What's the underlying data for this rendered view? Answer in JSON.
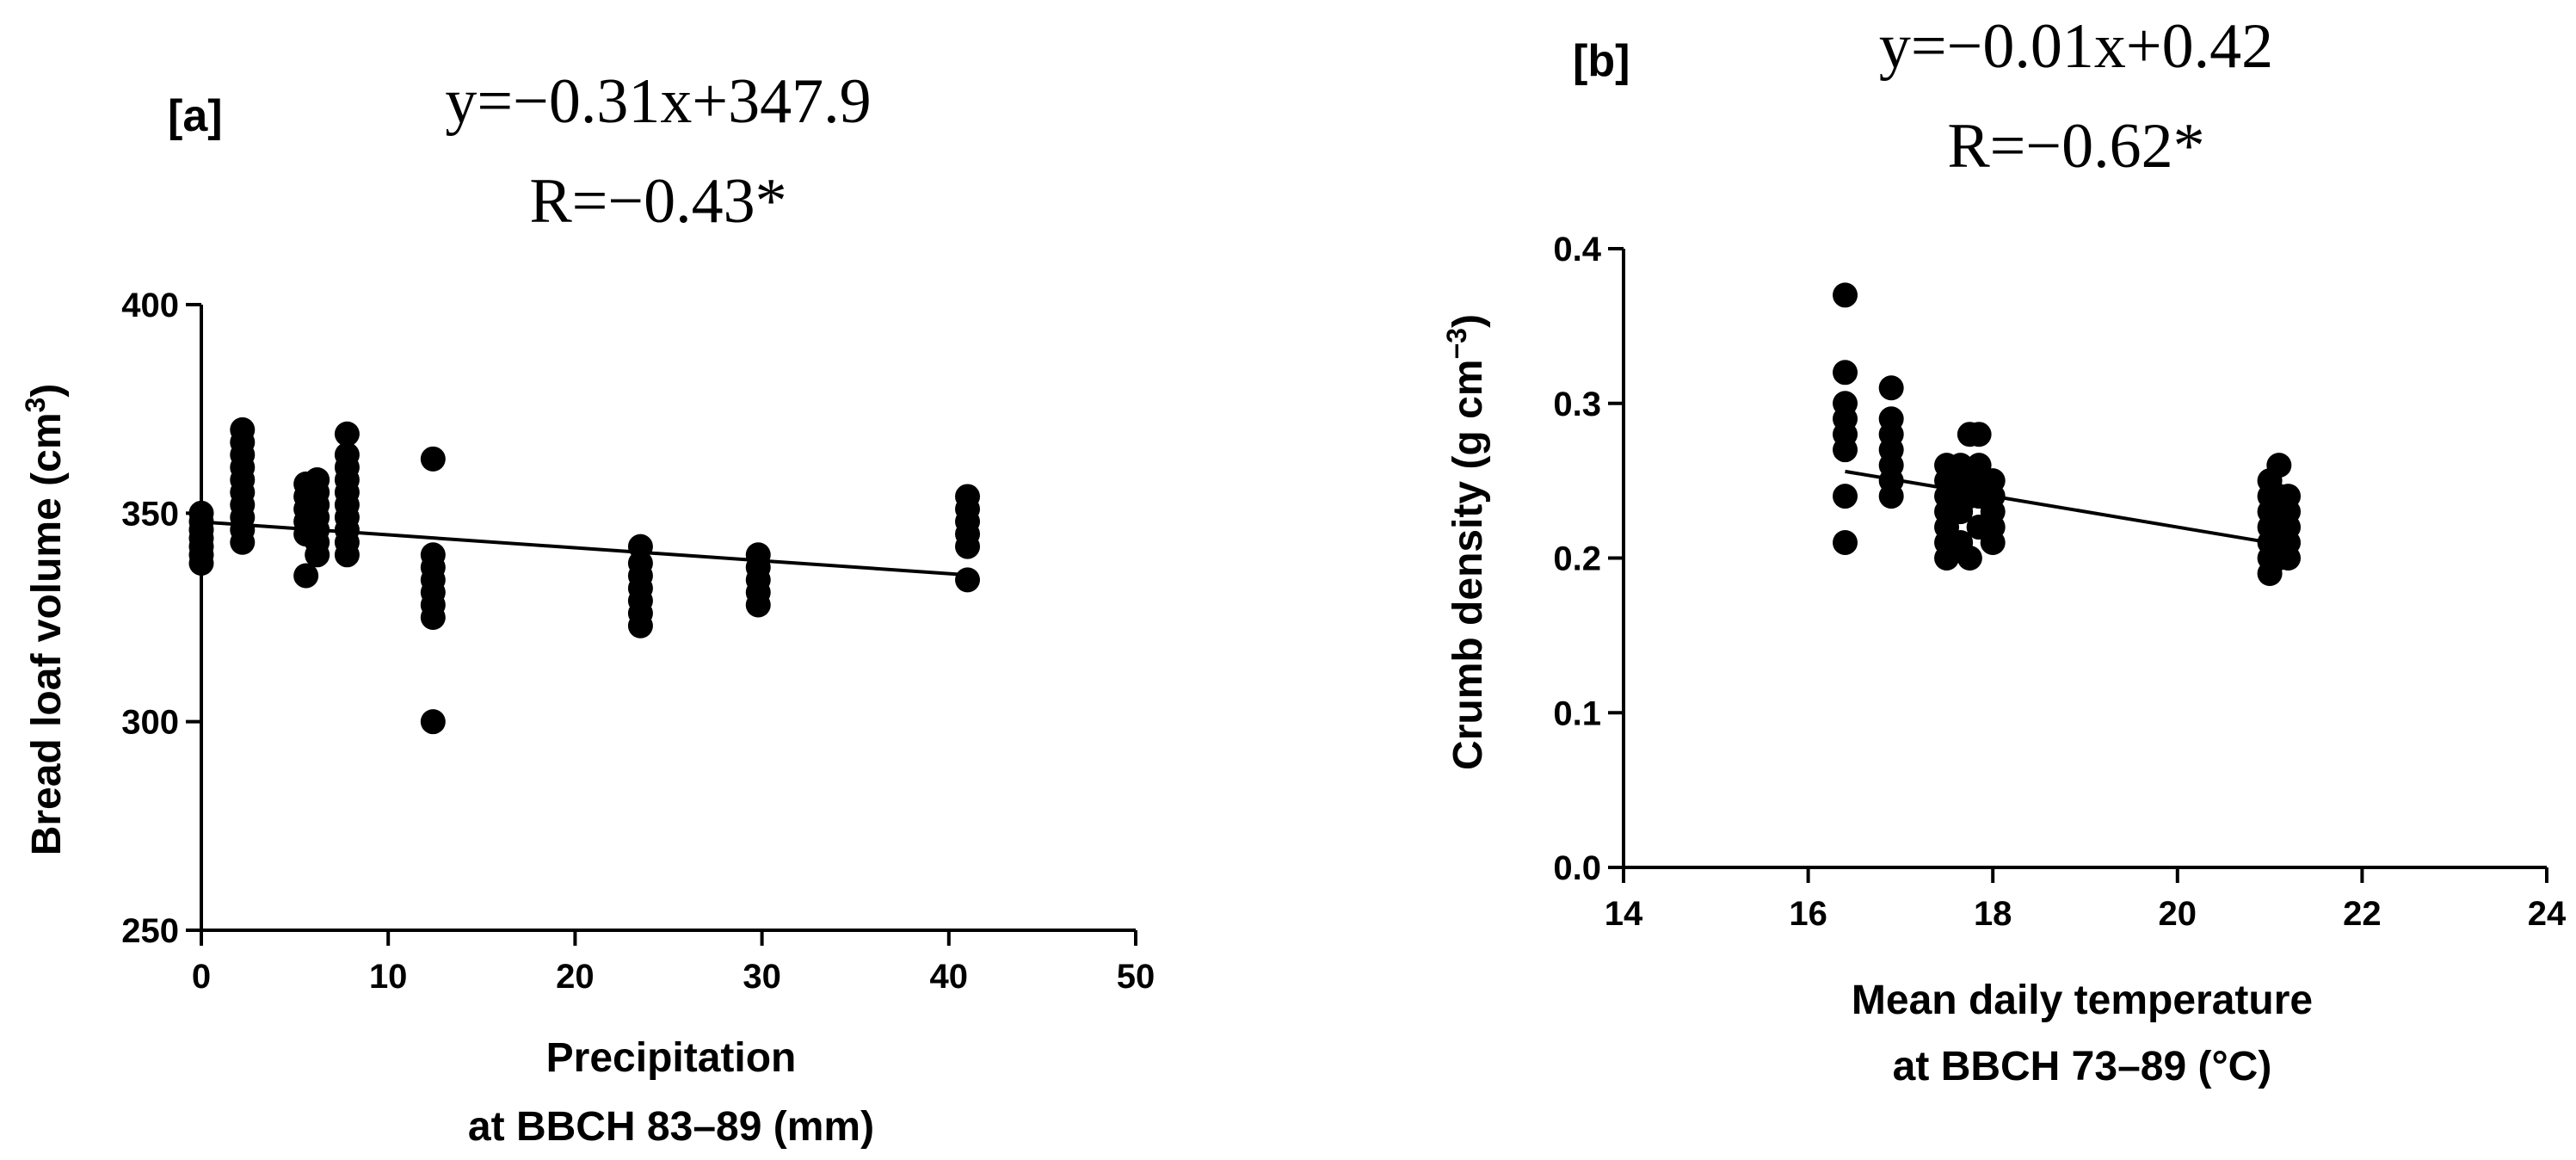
{
  "chart_data": [
    {
      "type": "scatter",
      "panel_label": "[a]",
      "equation": "y=−0.31x+347.9",
      "correlation": "R=−0.43*",
      "ylabel": "Bread loaf volume (cm",
      "ylabel_sup": "3",
      "ylabel_close": ")",
      "xlabel_line1": "Precipitation",
      "xlabel_line2": "at BBCH 83–89 (mm)",
      "xlim": [
        0,
        50
      ],
      "ylim": [
        250,
        400
      ],
      "xticks": [
        0,
        10,
        20,
        30,
        40,
        50
      ],
      "yticks": [
        250,
        300,
        350,
        400
      ],
      "fit": {
        "slope": -0.31,
        "intercept": 347.9,
        "x_range": [
          0,
          41
        ]
      },
      "points": [
        [
          0,
          338
        ],
        [
          0,
          340
        ],
        [
          0,
          342
        ],
        [
          0,
          344
        ],
        [
          0,
          346
        ],
        [
          0,
          348
        ],
        [
          0,
          350
        ],
        [
          2.2,
          343
        ],
        [
          2.2,
          346
        ],
        [
          2.2,
          349
        ],
        [
          2.2,
          352
        ],
        [
          2.2,
          355
        ],
        [
          2.2,
          358
        ],
        [
          2.2,
          361
        ],
        [
          2.2,
          364
        ],
        [
          2.2,
          367
        ],
        [
          2.2,
          370
        ],
        [
          5.6,
          335
        ],
        [
          5.6,
          345
        ],
        [
          5.6,
          348
        ],
        [
          5.6,
          351
        ],
        [
          5.6,
          354
        ],
        [
          5.6,
          357
        ],
        [
          6.2,
          340
        ],
        [
          6.2,
          343
        ],
        [
          6.2,
          346
        ],
        [
          6.2,
          349
        ],
        [
          6.2,
          352
        ],
        [
          6.2,
          355
        ],
        [
          6.2,
          358
        ],
        [
          7.8,
          340
        ],
        [
          7.8,
          343
        ],
        [
          7.8,
          346
        ],
        [
          7.8,
          349
        ],
        [
          7.8,
          352
        ],
        [
          7.8,
          355
        ],
        [
          7.8,
          358
        ],
        [
          7.8,
          361
        ],
        [
          7.8,
          364
        ],
        [
          7.8,
          369
        ],
        [
          12.4,
          300
        ],
        [
          12.4,
          325
        ],
        [
          12.4,
          328
        ],
        [
          12.4,
          331
        ],
        [
          12.4,
          334
        ],
        [
          12.4,
          337
        ],
        [
          12.4,
          340
        ],
        [
          12.4,
          363
        ],
        [
          23.5,
          323
        ],
        [
          23.5,
          326
        ],
        [
          23.5,
          329
        ],
        [
          23.5,
          332
        ],
        [
          23.5,
          335
        ],
        [
          23.5,
          338
        ],
        [
          23.5,
          342
        ],
        [
          29.8,
          328
        ],
        [
          29.8,
          331
        ],
        [
          29.8,
          334
        ],
        [
          29.8,
          337
        ],
        [
          29.8,
          340
        ],
        [
          41,
          334
        ],
        [
          41,
          342
        ],
        [
          41,
          345
        ],
        [
          41,
          348
        ],
        [
          41,
          351
        ],
        [
          41,
          354
        ]
      ]
    },
    {
      "type": "scatter",
      "panel_label": "[b]",
      "equation": "y=−0.01x+0.42",
      "correlation": "R=−0.62*",
      "ylabel": "Crumb density (g cm",
      "ylabel_sup": "−3",
      "ylabel_close": ")",
      "xlabel_line1": "Mean daily temperature",
      "xlabel_line2": "at BBCH 73–89 (°C)",
      "xlim": [
        14,
        24
      ],
      "ylim": [
        0.0,
        0.4
      ],
      "xticks": [
        14,
        16,
        18,
        20,
        22,
        24
      ],
      "yticks": [
        0.0,
        0.1,
        0.2,
        0.3,
        0.4
      ],
      "ytick_labels": [
        "0.0",
        "0.1",
        "0.2",
        "0.3",
        "0.4"
      ],
      "fit": {
        "slope": -0.01,
        "intercept": 0.42,
        "x_range": [
          16.4,
          21.1
        ]
      },
      "points": [
        [
          16.4,
          0.21
        ],
        [
          16.4,
          0.24
        ],
        [
          16.4,
          0.27
        ],
        [
          16.4,
          0.28
        ],
        [
          16.4,
          0.29
        ],
        [
          16.4,
          0.3
        ],
        [
          16.4,
          0.32
        ],
        [
          16.4,
          0.37
        ],
        [
          16.9,
          0.24
        ],
        [
          16.9,
          0.25
        ],
        [
          16.9,
          0.26
        ],
        [
          16.9,
          0.27
        ],
        [
          16.9,
          0.28
        ],
        [
          16.9,
          0.29
        ],
        [
          16.9,
          0.31
        ],
        [
          17.5,
          0.2
        ],
        [
          17.5,
          0.21
        ],
        [
          17.5,
          0.22
        ],
        [
          17.5,
          0.23
        ],
        [
          17.5,
          0.24
        ],
        [
          17.5,
          0.25
        ],
        [
          17.5,
          0.26
        ],
        [
          17.65,
          0.21
        ],
        [
          17.65,
          0.23
        ],
        [
          17.65,
          0.25
        ],
        [
          17.65,
          0.26
        ],
        [
          17.75,
          0.2
        ],
        [
          17.75,
          0.24
        ],
        [
          17.75,
          0.25
        ],
        [
          17.75,
          0.28
        ],
        [
          17.85,
          0.22
        ],
        [
          17.85,
          0.24
        ],
        [
          17.85,
          0.26
        ],
        [
          17.85,
          0.28
        ],
        [
          18.0,
          0.21
        ],
        [
          18.0,
          0.22
        ],
        [
          18.0,
          0.23
        ],
        [
          18.0,
          0.24
        ],
        [
          18.0,
          0.25
        ],
        [
          21.0,
          0.19
        ],
        [
          21.0,
          0.2
        ],
        [
          21.0,
          0.21
        ],
        [
          21.0,
          0.22
        ],
        [
          21.0,
          0.23
        ],
        [
          21.0,
          0.24
        ],
        [
          21.0,
          0.25
        ],
        [
          21.1,
          0.2
        ],
        [
          21.1,
          0.21
        ],
        [
          21.1,
          0.22
        ],
        [
          21.1,
          0.23
        ],
        [
          21.1,
          0.24
        ],
        [
          21.1,
          0.26
        ],
        [
          21.2,
          0.2
        ],
        [
          21.2,
          0.21
        ],
        [
          21.2,
          0.22
        ],
        [
          21.2,
          0.23
        ],
        [
          21.2,
          0.24
        ]
      ]
    }
  ]
}
